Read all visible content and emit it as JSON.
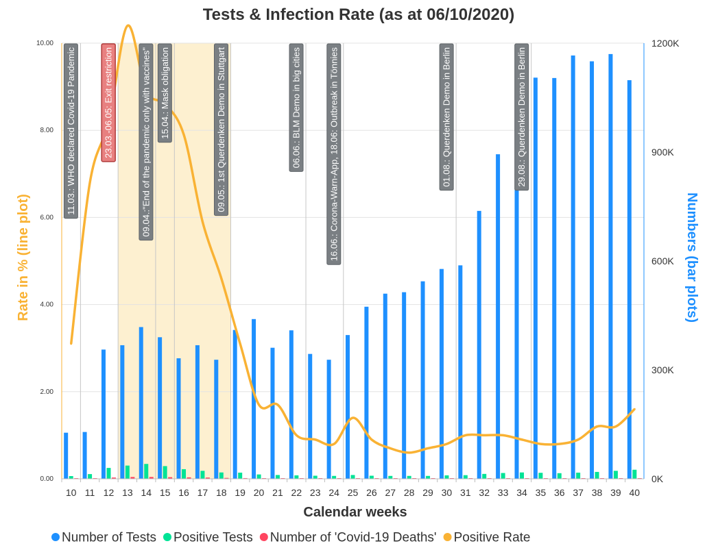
{
  "chart_data": {
    "type": "bar",
    "title": "Tests & Infection Rate (as at 06/10/2020)",
    "xlabel": "Calendar weeks",
    "ylabel_left": "Rate in % (line plot)",
    "ylabel_right": "Numbers (bar plots)",
    "categories": [
      "10",
      "11",
      "12",
      "13",
      "14",
      "15",
      "16",
      "17",
      "18",
      "19",
      "20",
      "21",
      "22",
      "23",
      "24",
      "25",
      "26",
      "27",
      "28",
      "29",
      "30",
      "31",
      "32",
      "33",
      "34",
      "35",
      "36",
      "37",
      "38",
      "39",
      "40"
    ],
    "ylim_left": [
      0,
      10
    ],
    "ylim_right": [
      0,
      1200000
    ],
    "left_ticks": [
      "0.00",
      "2.00",
      "4.00",
      "6.00",
      "8.00",
      "10.00"
    ],
    "right_ticks": [
      "0K",
      "300K",
      "600K",
      "900K",
      "1200K"
    ],
    "grid": true,
    "legend_position": "bottom",
    "colors": {
      "tests": "#1e90ff",
      "positive": "#00e396",
      "deaths": "#ff4560",
      "rate": "#f9b234",
      "shade": "#fdf0d0",
      "annotation": "#7a7f83",
      "annotation_highlight": "#e88080"
    },
    "series": [
      {
        "name": "Number of Tests",
        "axis": "right",
        "values": [
          127000,
          129000,
          356000,
          368000,
          418000,
          390000,
          332000,
          368000,
          328000,
          410000,
          440000,
          361000,
          409000,
          344000,
          328000,
          396000,
          474000,
          510000,
          514000,
          544000,
          578000,
          588000,
          738000,
          894000,
          1058000,
          1105000,
          1104000,
          1166000,
          1150000,
          1170000,
          1098000
        ]
      },
      {
        "name": "Positive Tests",
        "axis": "right",
        "values": [
          7500,
          13000,
          30000,
          36500,
          41000,
          35000,
          26500,
          22000,
          17500,
          17000,
          12000,
          10500,
          9500,
          8500,
          8000,
          10500,
          8500,
          8000,
          8000,
          8000,
          9500,
          10000,
          13500,
          16000,
          17500,
          16500,
          15500,
          17000,
          19000,
          22000,
          25000
        ]
      },
      {
        "name": "Number of 'Covid-19 Deaths'",
        "axis": "right",
        "values": [
          1000,
          1500,
          3500,
          5000,
          5000,
          4500,
          4000,
          3500,
          2500,
          2000,
          1000,
          800,
          600,
          500,
          400,
          300,
          300,
          300,
          300,
          300,
          300,
          300,
          300,
          400,
          400,
          400,
          400,
          500,
          700,
          900,
          1200
        ]
      },
      {
        "name": "Positive Rate",
        "axis": "left",
        "values": [
          3.1,
          6.8,
          8.2,
          10.4,
          8.9,
          8.6,
          7.9,
          5.9,
          4.6,
          3.1,
          1.7,
          1.7,
          1.0,
          0.9,
          0.8,
          1.4,
          0.9,
          0.7,
          0.6,
          0.7,
          0.8,
          1.0,
          1.0,
          1.0,
          0.9,
          0.8,
          0.8,
          0.9,
          1.2,
          1.2,
          1.6
        ]
      }
    ],
    "shaded_ranges": [
      {
        "from": "13",
        "to": "19"
      }
    ],
    "annotations": [
      {
        "text": "11.03.: WHO declared Covid-19 Pandemic",
        "week": "11",
        "highlight": false
      },
      {
        "text": "23.03.-06.05: Exit restriction",
        "week": "13",
        "highlight": true
      },
      {
        "text": "09.04.:\"End of the pandemic only with vaccines\"",
        "week": "15",
        "highlight": false
      },
      {
        "text": "15.04.: Mask obligation",
        "week": "16",
        "highlight": false
      },
      {
        "text": "09.05.: 1st Querdenken Demo in Stuttgart",
        "week": "19",
        "highlight": false
      },
      {
        "text": "06.06.: BLM Demo in big cities",
        "week": "23",
        "highlight": false
      },
      {
        "text": "16.06.: Corona-Warn-App, 18.06: Outbreak in Tönnies",
        "week": "25",
        "highlight": false
      },
      {
        "text": "01.08.: Querdenken Demo in Berlin",
        "week": "31",
        "highlight": false
      },
      {
        "text": "29.08.: Querdenken Demo in Berlin",
        "week": "35",
        "highlight": false
      }
    ]
  }
}
